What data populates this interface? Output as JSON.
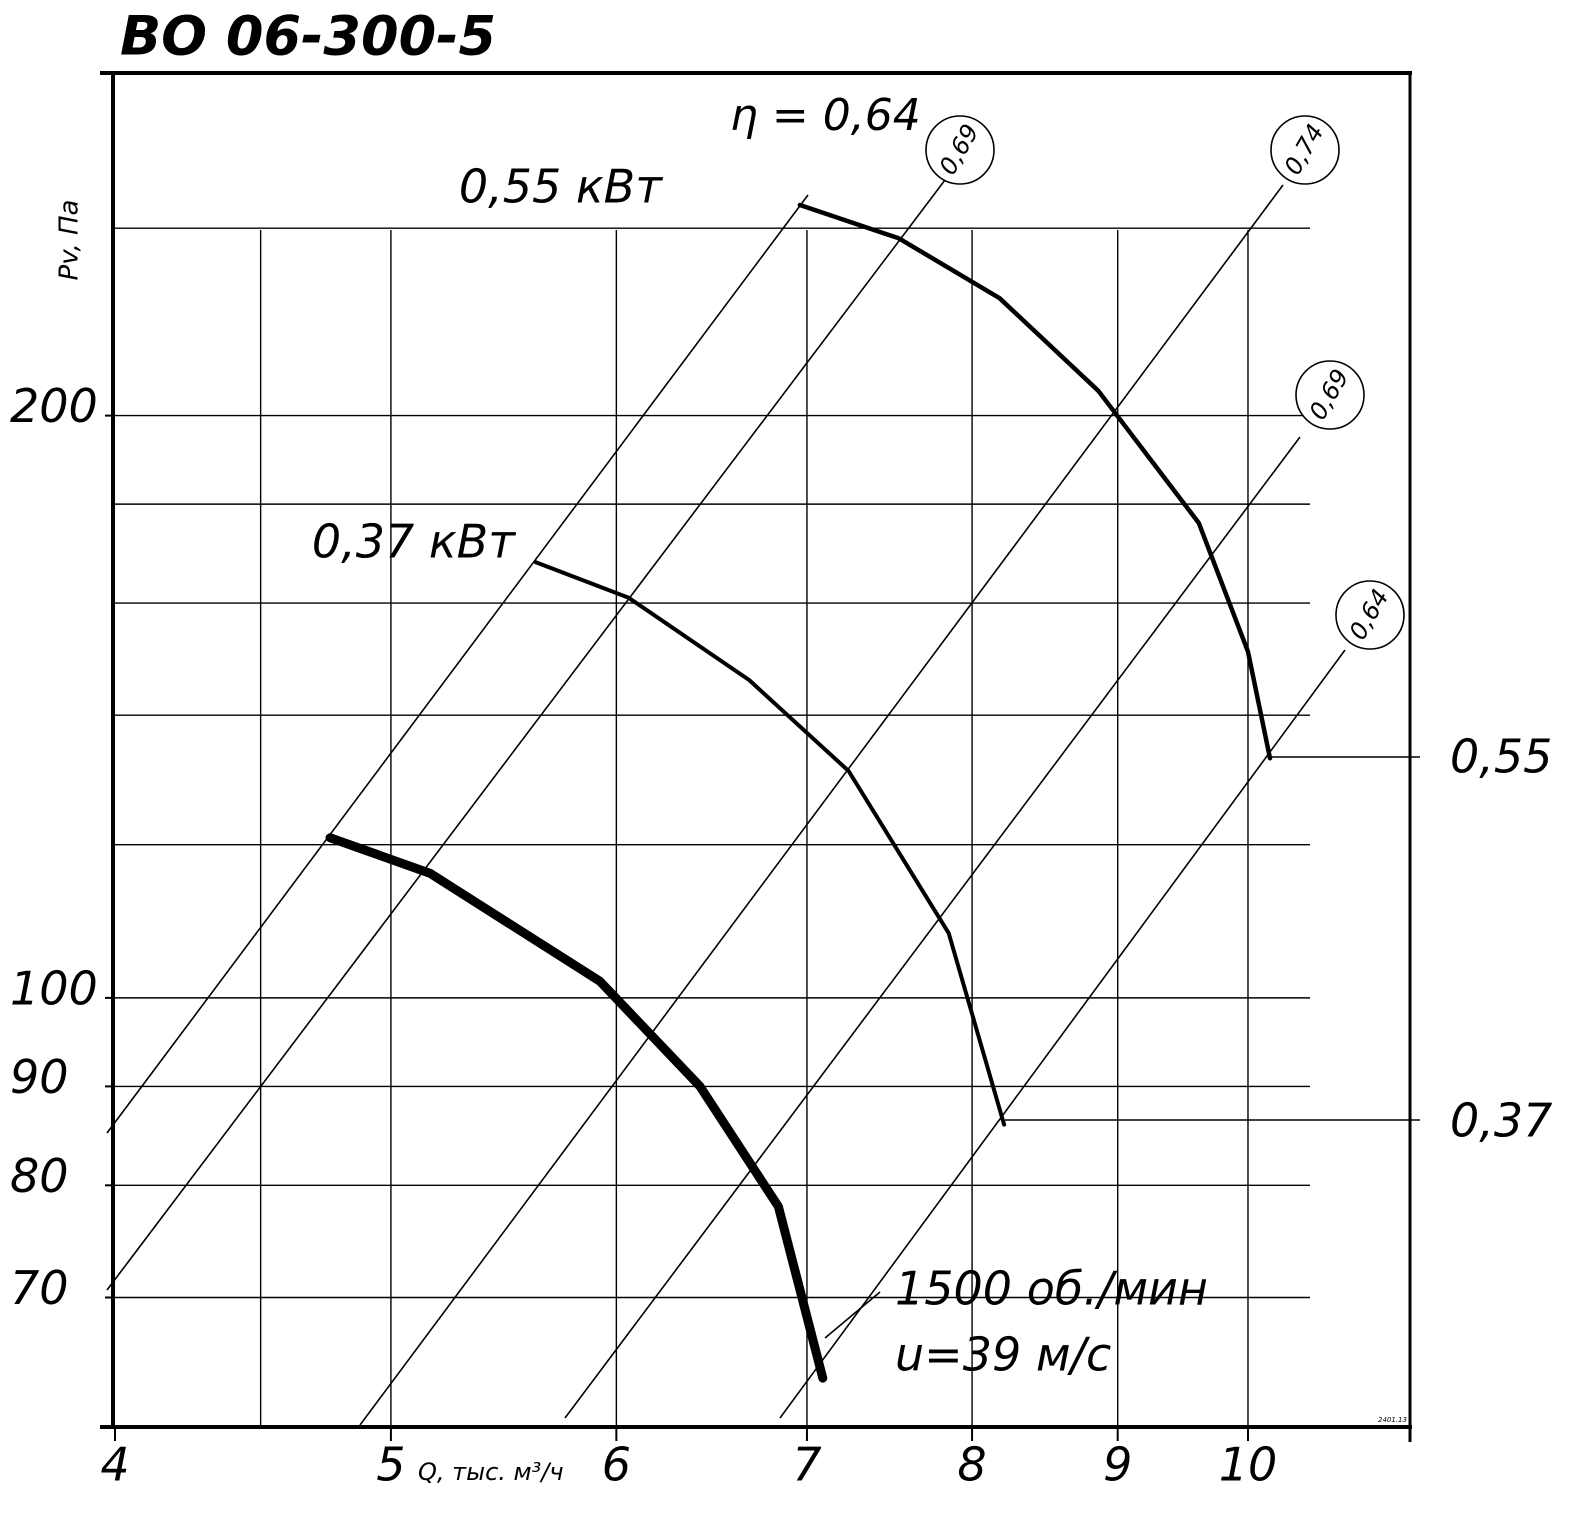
{
  "chart_data": {
    "type": "line",
    "title": "ВО 06-300-5",
    "x_label": "Q, тыс. м³/ч",
    "y_label": "Pv, Па",
    "log_x": true,
    "log_y": true,
    "xlim": [
      4,
      11.4
    ],
    "ylim": [
      60,
      300
    ],
    "xticks": [
      4,
      5,
      6,
      7,
      8,
      9,
      10
    ],
    "yticks": [
      70,
      80,
      90,
      100,
      200
    ],
    "x_grid": [
      4.5,
      5,
      6,
      7,
      8,
      9,
      10
    ],
    "y_grid": [
      250,
      200,
      180,
      160,
      140,
      120,
      100,
      90,
      80,
      70
    ],
    "series": [
      {
        "name": "0,55 кВт",
        "color": "#000000",
        "width": 4.5,
        "x": [
          6.96,
          7.54,
          8.18,
          8.86,
          9.61,
          10.0,
          10.18
        ],
        "values": [
          257,
          247,
          230,
          206,
          176,
          151,
          133
        ]
      },
      {
        "name": "0,37 кВт",
        "color": "#000000",
        "width": 4,
        "x": [
          5.62,
          6.06,
          6.68,
          7.24,
          7.85,
          8.21
        ],
        "values": [
          168,
          161,
          146,
          131,
          108,
          86
        ]
      },
      {
        "name": "1500 об./мин",
        "color": "#000000",
        "width": 9,
        "x": [
          4.76,
          5.16,
          5.92,
          6.42,
          6.84,
          7.09
        ],
        "values": [
          121,
          116,
          102,
          90,
          78,
          63.6
        ]
      }
    ],
    "efficiency_labels": [
      "η = 0,64",
      "0,69",
      "0,74",
      "0,69",
      "0,64"
    ],
    "power_labels": [
      "0,55",
      "0,37"
    ],
    "annotations": [
      "u=39 м/с",
      "2401.13"
    ]
  }
}
